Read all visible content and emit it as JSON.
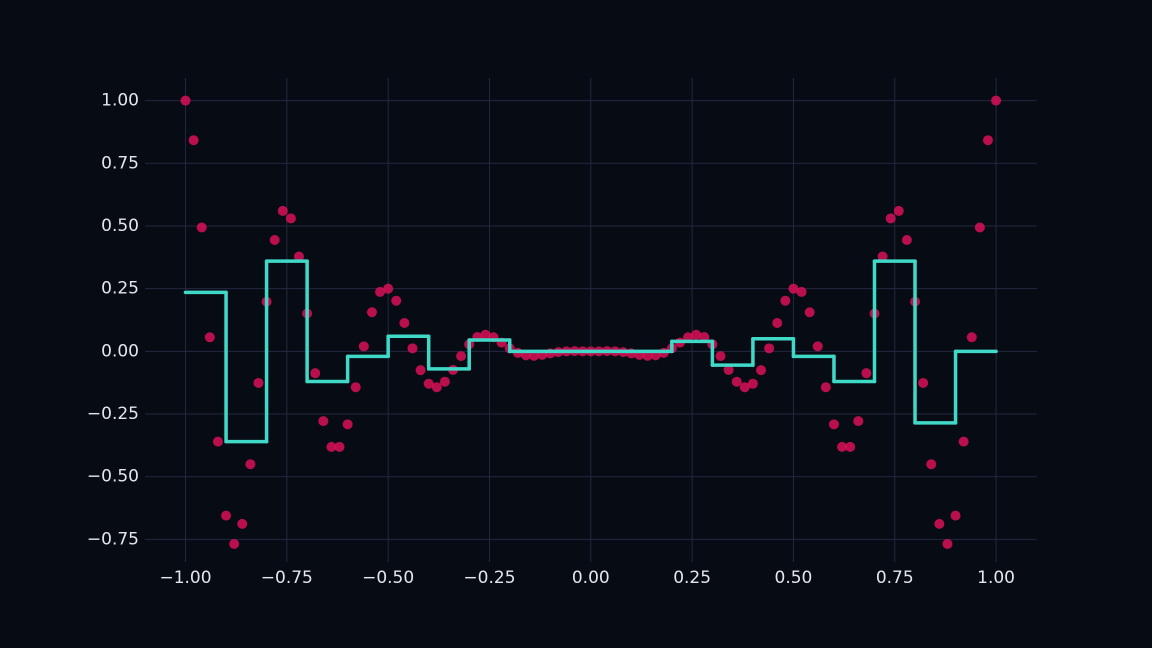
{
  "chart_data": {
    "type": "scatter",
    "xlim": [
      -1.1,
      1.1
    ],
    "ylim": [
      -0.84,
      1.09
    ],
    "grid": true,
    "xticks": [
      {
        "value": -1,
        "label": "−1.00"
      },
      {
        "value": -0.75,
        "label": "−0.75"
      },
      {
        "value": -0.5,
        "label": "−0.50"
      },
      {
        "value": -0.25,
        "label": "−0.25"
      },
      {
        "value": 0,
        "label": "0.00"
      },
      {
        "value": 0.25,
        "label": "0.25"
      },
      {
        "value": 0.5,
        "label": "0.50"
      },
      {
        "value": 0.75,
        "label": "0.75"
      },
      {
        "value": 1,
        "label": "1.00"
      }
    ],
    "yticks": [
      {
        "value": -0.75,
        "label": "−0.75"
      },
      {
        "value": -0.5,
        "label": "−0.50"
      },
      {
        "value": -0.25,
        "label": "−0.25"
      },
      {
        "value": 0,
        "label": "0.00"
      },
      {
        "value": 0.25,
        "label": "0.25"
      },
      {
        "value": 0.5,
        "label": "0.50"
      },
      {
        "value": 0.75,
        "label": "0.75"
      },
      {
        "value": 1,
        "label": "1.00"
      }
    ],
    "series": [
      {
        "type": "scatter",
        "color": "#e0105a",
        "x": [
          -1.0,
          -0.98,
          -0.96,
          -0.94,
          -0.92,
          -0.9,
          -0.88,
          -0.86,
          -0.84,
          -0.82,
          -0.8,
          -0.78,
          -0.76,
          -0.74,
          -0.72,
          -0.7,
          -0.68,
          -0.66,
          -0.64,
          -0.62,
          -0.6,
          -0.58,
          -0.56,
          -0.54,
          -0.52,
          -0.5,
          -0.48,
          -0.46,
          -0.44,
          -0.42,
          -0.4,
          -0.38,
          -0.36,
          -0.34,
          -0.32,
          -0.3,
          -0.28,
          -0.26,
          -0.24,
          -0.22,
          -0.2,
          -0.18,
          -0.16,
          -0.14,
          -0.12,
          -0.1,
          -0.08,
          -0.06,
          -0.04,
          -0.02,
          0.0,
          0.02,
          0.04,
          0.06,
          0.08,
          0.1,
          0.12,
          0.14,
          0.16,
          0.18,
          0.2,
          0.22,
          0.24,
          0.26,
          0.28,
          0.3,
          0.32,
          0.34,
          0.36,
          0.38,
          0.4,
          0.42,
          0.44,
          0.46,
          0.48,
          0.5,
          0.52,
          0.54,
          0.56,
          0.58,
          0.6,
          0.62,
          0.64,
          0.66,
          0.68,
          0.7,
          0.72,
          0.74,
          0.76,
          0.78,
          0.8,
          0.82,
          0.84,
          0.86,
          0.88,
          0.9,
          0.92,
          0.94,
          0.96,
          0.98,
          1.0
        ],
        "values": [
          1.0,
          0.842,
          0.494,
          0.056,
          -0.36,
          -0.655,
          -0.768,
          -0.688,
          -0.45,
          -0.126,
          0.198,
          0.444,
          0.56,
          0.53,
          0.378,
          0.151,
          -0.087,
          -0.278,
          -0.381,
          -0.381,
          -0.291,
          -0.143,
          0.02,
          0.156,
          0.237,
          0.25,
          0.202,
          0.113,
          0.012,
          -0.075,
          -0.129,
          -0.143,
          -0.121,
          -0.074,
          -0.019,
          0.028,
          0.057,
          0.066,
          0.056,
          0.035,
          0.012,
          -0.006,
          -0.016,
          -0.018,
          -0.014,
          -0.008,
          -0.003,
          0.0,
          0.001,
          0.0,
          0.0,
          0.0,
          0.001,
          0.0,
          -0.003,
          -0.008,
          -0.014,
          -0.018,
          -0.016,
          -0.006,
          0.012,
          0.035,
          0.056,
          0.066,
          0.057,
          0.028,
          -0.019,
          -0.074,
          -0.121,
          -0.143,
          -0.129,
          -0.075,
          0.012,
          0.113,
          0.202,
          0.25,
          0.237,
          0.156,
          0.02,
          -0.143,
          -0.291,
          -0.381,
          -0.381,
          -0.278,
          -0.087,
          0.151,
          0.378,
          0.53,
          0.56,
          0.444,
          0.198,
          -0.126,
          -0.45,
          -0.688,
          -0.768,
          -0.655,
          -0.36,
          0.056,
          0.494,
          0.842,
          1.0
        ]
      },
      {
        "type": "step",
        "color": "#40d9c8",
        "x": [
          -1.0,
          -0.9,
          -0.8,
          -0.7,
          -0.6,
          -0.5,
          -0.4,
          -0.3,
          -0.2,
          -0.1,
          0.0,
          0.1,
          0.2,
          0.3,
          0.4,
          0.5,
          0.6,
          0.7,
          0.8,
          0.9,
          1.0
        ],
        "values": [
          0.235,
          -0.36,
          0.36,
          -0.12,
          -0.02,
          0.06,
          -0.07,
          0.045,
          0.0,
          0.0,
          0.0,
          0.0,
          0.04,
          -0.055,
          0.05,
          -0.02,
          -0.12,
          0.36,
          -0.285,
          0.0,
          0.0
        ]
      }
    ]
  }
}
